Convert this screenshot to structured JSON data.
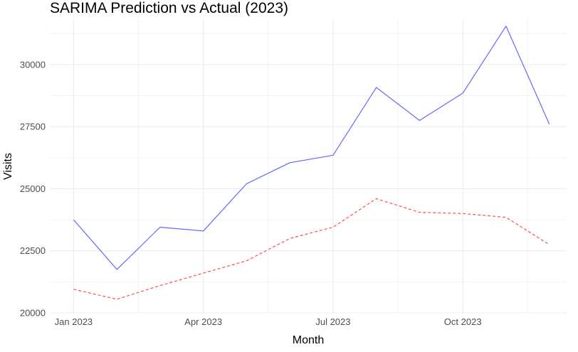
{
  "chart_data": {
    "type": "line",
    "title": "SARIMA Prediction vs Actual (2023)",
    "xlabel": "Month",
    "ylabel": "Visits",
    "x": [
      "2023-01",
      "2023-02",
      "2023-03",
      "2023-04",
      "2023-05",
      "2023-06",
      "2023-07",
      "2023-08",
      "2023-09",
      "2023-10",
      "2023-11",
      "2023-12"
    ],
    "x_tick_labels": [
      "Jan 2023",
      "Apr 2023",
      "Jul 2023",
      "Oct 2023"
    ],
    "y_ticks": [
      20000,
      22500,
      25000,
      27500,
      30000
    ],
    "ylim": [
      20000,
      31800
    ],
    "series": [
      {
        "color": "#6666ff",
        "line_style": "solid",
        "values": [
          23750,
          21750,
          23450,
          23300,
          25200,
          26050,
          26350,
          29080,
          27750,
          28850,
          31550,
          27600
        ]
      },
      {
        "color": "#ff4d4d",
        "line_style": "dashed",
        "values": [
          20950,
          20550,
          21100,
          21600,
          22100,
          23000,
          23450,
          24600,
          24050,
          24000,
          23850,
          22750
        ]
      }
    ],
    "grid": true,
    "legend": "none",
    "theme": "minimal"
  }
}
